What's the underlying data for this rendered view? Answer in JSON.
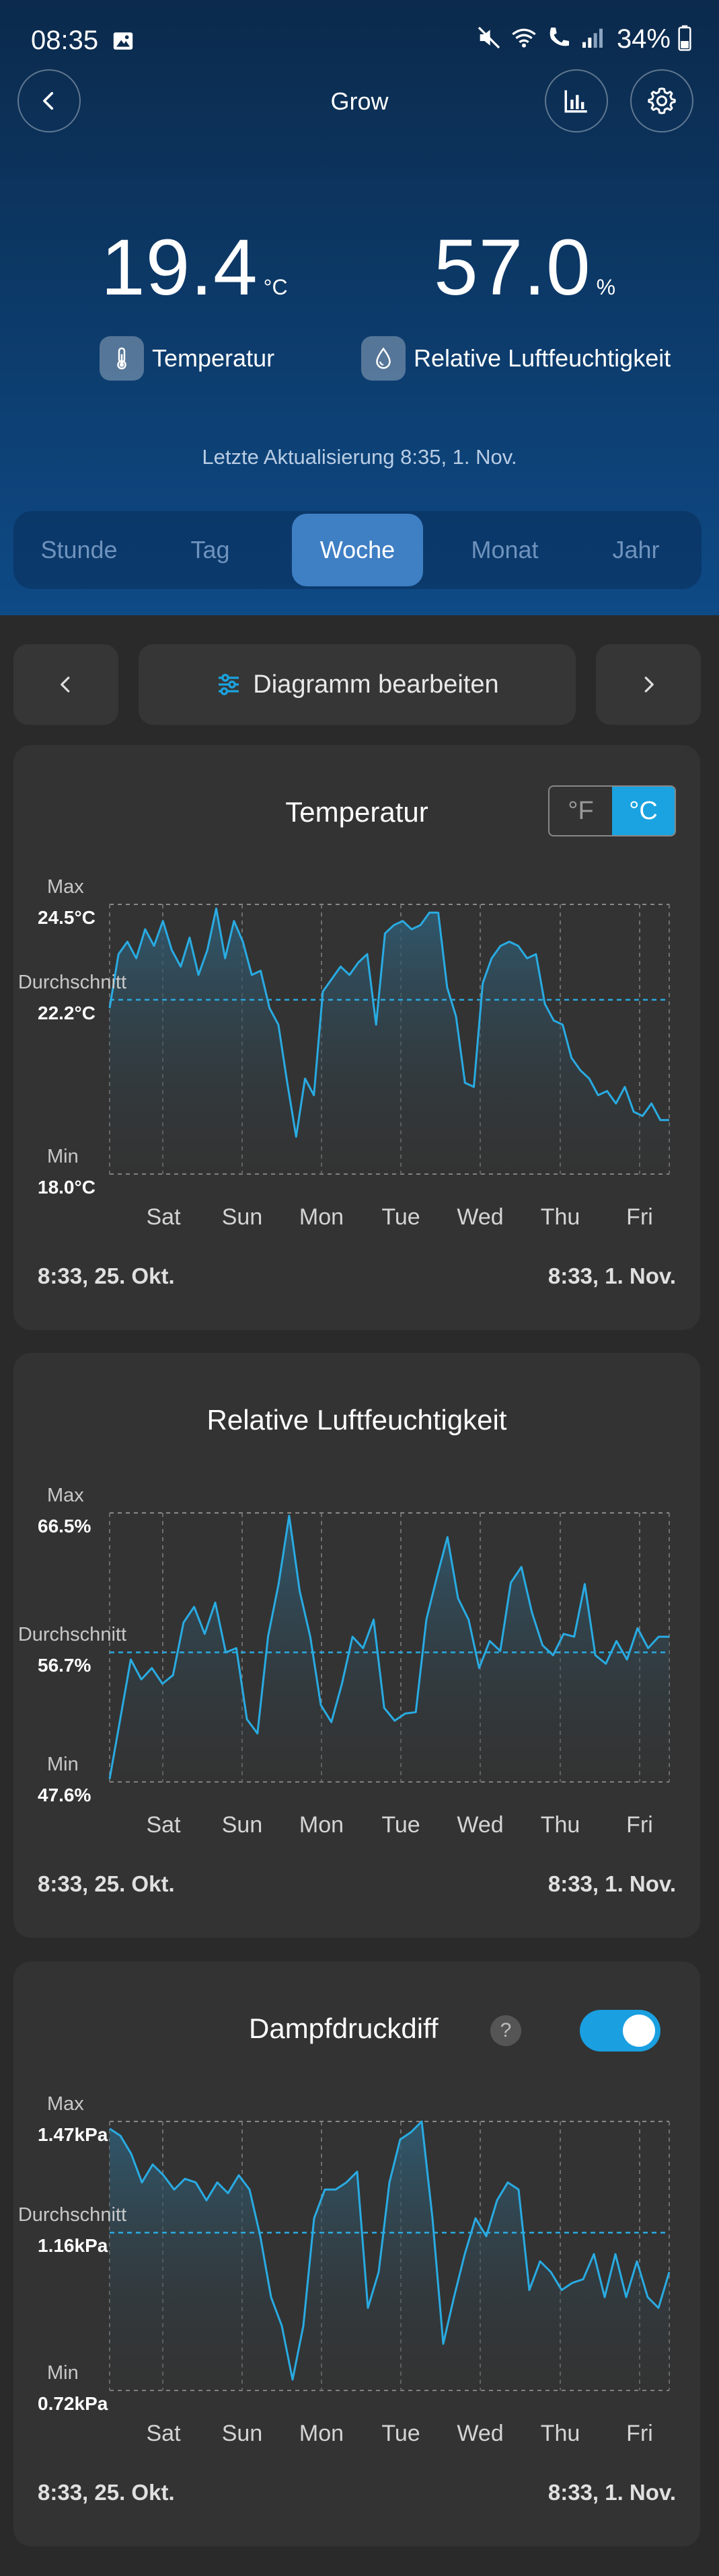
{
  "status_bar": {
    "time": "08:35",
    "battery": "34%",
    "icons": [
      "image-icon",
      "mute-icon",
      "wifi-icon",
      "wifi-call-icon",
      "signal-icon",
      "battery-icon"
    ]
  },
  "header": {
    "title": "Grow",
    "back_icon": "chevron-left-icon",
    "chart_icon": "bar-chart-icon",
    "settings_icon": "gear-icon"
  },
  "readings": {
    "temperature": {
      "value": "19.4",
      "unit": "°C",
      "label": "Temperatur",
      "icon": "thermometer-icon"
    },
    "humidity": {
      "value": "57.0",
      "unit": "%",
      "label": "Relative Luftfeuchtigkeit",
      "icon": "humidity-icon"
    }
  },
  "last_update": "Letzte Aktualisierung 8:35,  1. Nov.",
  "periods": [
    "Stunde",
    "Tag",
    "Woche",
    "Monat",
    "Jahr"
  ],
  "active_period": "Woche",
  "nav": {
    "edit_chart": "Diagramm bearbeiten",
    "edit_icon": "sliders-icon",
    "prev_icon": "chevron-left-icon",
    "next_icon": "chevron-right-icon"
  },
  "colors": {
    "accent": "#1aa3e0",
    "line": "#29abe2",
    "header_top": "#0b2a4c",
    "header_bottom": "#0e4a86",
    "card": "#333333"
  },
  "labels": {
    "max": "Max",
    "avg": "Durchschnitt",
    "min": "Min"
  },
  "chart_data": [
    {
      "type": "line",
      "title": "Temperatur",
      "unit_toggle": {
        "options": [
          "°F",
          "°C"
        ],
        "selected": "°C"
      },
      "max_label": "24.5°C",
      "avg_label": "22.2°C",
      "min_label": "18.0°C",
      "ylim": [
        18.0,
        24.5
      ],
      "average": 22.2,
      "days": [
        "Sat",
        "Sun",
        "Mon",
        "Tue",
        "Wed",
        "Thu",
        "Fri"
      ],
      "range_start": "8:33,  25. Okt.",
      "range_end": "8:33,  1. Nov.",
      "series": [
        {
          "values": [
            22.0,
            23.3,
            23.6,
            23.2,
            23.9,
            23.5,
            24.1,
            23.4,
            23.0,
            23.7,
            22.8,
            23.4,
            24.4,
            23.2,
            24.1,
            23.6,
            22.8,
            22.9,
            22.0,
            21.6,
            20.2,
            18.9,
            20.3,
            19.9,
            22.4,
            22.7,
            23.0,
            22.8,
            23.1,
            23.3,
            21.6,
            23.8,
            24.0,
            24.1,
            23.9,
            24.0,
            24.3,
            24.3,
            22.5,
            21.8,
            20.2,
            20.1,
            22.6,
            23.2,
            23.5,
            23.6,
            23.5,
            23.2,
            23.3,
            22.1,
            21.7,
            21.6,
            20.8,
            20.5,
            20.3,
            19.9,
            20.0,
            19.7,
            20.1,
            19.5,
            19.4,
            19.7,
            19.3,
            19.3
          ]
        }
      ]
    },
    {
      "type": "line",
      "title": "Relative Luftfeuchtigkeit",
      "max_label": "66.5%",
      "avg_label": "56.7%",
      "min_label": "47.6%",
      "ylim": [
        47.6,
        66.5
      ],
      "average": 56.7,
      "days": [
        "Sat",
        "Sun",
        "Mon",
        "Tue",
        "Wed",
        "Thu",
        "Fri"
      ],
      "range_start": "8:33,  25. Okt.",
      "range_end": "8:33,  1. Nov.",
      "series": [
        {
          "values": [
            47.8,
            52.0,
            56.2,
            54.8,
            55.6,
            54.5,
            55.1,
            58.8,
            59.9,
            58.0,
            60.2,
            56.7,
            57.0,
            52.0,
            51.0,
            57.8,
            61.5,
            66.3,
            61.0,
            57.8,
            53.0,
            51.8,
            54.5,
            57.8,
            57.0,
            59.0,
            52.8,
            51.9,
            52.4,
            52.5,
            59.0,
            62.0,
            64.8,
            60.5,
            59.0,
            55.6,
            57.5,
            56.8,
            61.6,
            62.7,
            59.5,
            57.2,
            56.5,
            58.0,
            57.8,
            61.5,
            56.5,
            55.9,
            57.5,
            56.2,
            58.4,
            57.0,
            57.8,
            57.8
          ]
        }
      ]
    },
    {
      "type": "line",
      "title": "Dampfdruckdiff",
      "toggle_on": true,
      "max_label": "1.47kPa",
      "avg_label": "1.16kPa",
      "min_label": "0.72kPa",
      "ylim": [
        0.72,
        1.47
      ],
      "average": 1.16,
      "days": [
        "Sat",
        "Sun",
        "Mon",
        "Tue",
        "Wed",
        "Thu",
        "Fri"
      ],
      "range_start": "8:33,  25. Okt.",
      "range_end": "8:33,  1. Nov.",
      "series": [
        {
          "values": [
            1.45,
            1.43,
            1.38,
            1.3,
            1.35,
            1.32,
            1.28,
            1.31,
            1.3,
            1.25,
            1.3,
            1.27,
            1.32,
            1.28,
            1.15,
            0.98,
            0.9,
            0.75,
            0.9,
            1.2,
            1.28,
            1.28,
            1.3,
            1.33,
            0.95,
            1.05,
            1.3,
            1.42,
            1.44,
            1.47,
            1.2,
            0.85,
            0.98,
            1.1,
            1.2,
            1.15,
            1.25,
            1.3,
            1.28,
            1.0,
            1.08,
            1.05,
            1.0,
            1.02,
            1.03,
            1.1,
            0.98,
            1.1,
            0.98,
            1.08,
            0.98,
            0.95,
            1.05
          ]
        }
      ]
    }
  ]
}
